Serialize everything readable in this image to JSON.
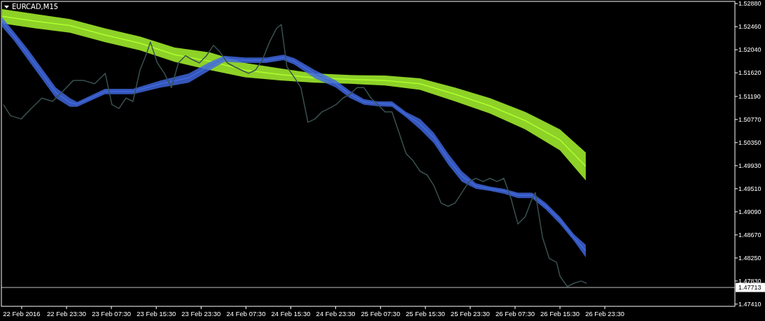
{
  "chart_data": {
    "type": "line",
    "title": "EURCAD,M15",
    "xlim": [
      "2016-02-22T11:53",
      "2016-02-27T22:42"
    ],
    "ylim": [
      1.4737,
      1.5292
    ],
    "xticks": [
      {
        "value": "2016-02-22T15:30",
        "label": "22 Feb 2016"
      },
      {
        "value": "2016-02-22T23:30",
        "label": "22 Feb 23:30"
      },
      {
        "value": "2016-02-23T07:30",
        "label": "23 Feb 07:30"
      },
      {
        "value": "2016-02-23T15:30",
        "label": "23 Feb 15:30"
      },
      {
        "value": "2016-02-23T23:30",
        "label": "23 Feb 23:30"
      },
      {
        "value": "2016-02-24T07:30",
        "label": "24 Feb 07:30"
      },
      {
        "value": "2016-02-24T15:30",
        "label": "24 Feb 15:30"
      },
      {
        "value": "2016-02-24T23:30",
        "label": "24 Feb 23:30"
      },
      {
        "value": "2016-02-25T07:30",
        "label": "25 Feb 07:30"
      },
      {
        "value": "2016-02-25T15:30",
        "label": "25 Feb 15:30"
      },
      {
        "value": "2016-02-25T23:30",
        "label": "25 Feb 23:30"
      },
      {
        "value": "2016-02-26T07:30",
        "label": "26 Feb 07:30"
      },
      {
        "value": "2016-02-26T15:30",
        "label": "26 Feb 15:30"
      },
      {
        "value": "2016-02-26T23:30",
        "label": "26 Feb 23:30"
      }
    ],
    "yticks": [
      {
        "value": 1.5288,
        "label": "1.52880"
      },
      {
        "value": 1.5246,
        "label": "1.52460"
      },
      {
        "value": 1.5204,
        "label": "1.52040"
      },
      {
        "value": 1.5162,
        "label": "1.51620"
      },
      {
        "value": 1.5119,
        "label": "1.51190"
      },
      {
        "value": 1.5077,
        "label": "1.50770"
      },
      {
        "value": 1.5035,
        "label": "1.50350"
      },
      {
        "value": 1.4993,
        "label": "1.49930"
      },
      {
        "value": 1.4951,
        "label": "1.49510"
      },
      {
        "value": 1.4909,
        "label": "1.49090"
      },
      {
        "value": 1.4867,
        "label": "1.48670"
      },
      {
        "value": 1.4825,
        "label": "1.48250"
      },
      {
        "value": 1.4783,
        "label": "1.47830"
      },
      {
        "value": 1.4741,
        "label": "1.47410"
      }
    ],
    "grid": false,
    "ref_lines": [
      {
        "axis": "y",
        "value": 1.47713,
        "label": "1.47713",
        "color": "#c0c0c0"
      }
    ],
    "series": [
      {
        "color": "#adff2f",
        "x": [
          "2016-02-22T12:00",
          "2016-02-22T17:54",
          "2016-02-23T00:06",
          "2016-02-23T06:21",
          "2016-02-23T12:36",
          "2016-02-23T18:48",
          "2016-02-24T01:06",
          "2016-02-24T07:18",
          "2016-02-24T13:33",
          "2016-02-24T19:48",
          "2016-02-25T02:03",
          "2016-02-25T08:18",
          "2016-02-25T14:33",
          "2016-02-25T20:48",
          "2016-02-26T03:00",
          "2016-02-26T09:18",
          "2016-02-26T15:30",
          "2016-02-26T20:06"
        ],
        "values": [
          1.5265,
          1.5256,
          1.5248,
          1.5231,
          1.5216,
          1.5195,
          1.5183,
          1.5167,
          1.5159,
          1.5153,
          1.515,
          1.5148,
          1.5142,
          1.5123,
          1.5102,
          1.5075,
          1.504,
          1.4992
        ],
        "upper": [
          1.5278,
          1.5269,
          1.526,
          1.5243,
          1.5228,
          1.5208,
          1.5199,
          1.518,
          1.517,
          1.5161,
          1.5158,
          1.5157,
          1.5152,
          1.5135,
          1.5116,
          1.5091,
          1.5059,
          1.5017
        ],
        "lower": [
          1.5252,
          1.5243,
          1.5235,
          1.5218,
          1.5203,
          1.5182,
          1.5167,
          1.5154,
          1.5148,
          1.5144,
          1.5142,
          1.5139,
          1.5131,
          1.511,
          1.5088,
          1.5059,
          1.5021,
          1.4966
        ]
      },
      {
        "color": "#4169e1",
        "x": [
          "2016-02-22T12:00",
          "2016-02-22T14:06",
          "2016-02-22T16:36",
          "2016-02-22T21:36",
          "2016-02-23T00:06",
          "2016-02-23T01:24",
          "2016-02-23T06:21",
          "2016-02-23T11:21",
          "2016-02-23T16:18",
          "2016-02-23T21:18",
          "2016-02-24T01:06",
          "2016-02-24T03:36",
          "2016-02-24T07:18",
          "2016-02-24T11:06",
          "2016-02-24T14:12",
          "2016-02-24T16:06",
          "2016-02-24T19:48",
          "2016-02-24T23:33",
          "2016-02-25T02:03",
          "2016-02-25T04:33",
          "2016-02-25T07:03",
          "2016-02-25T09:33",
          "2016-02-25T12:03",
          "2016-02-25T14:33",
          "2016-02-25T17:00",
          "2016-02-25T19:33",
          "2016-02-25T22:00",
          "2016-02-26T00:30",
          "2016-02-26T03:00",
          "2016-02-26T05:30",
          "2016-02-26T08:00",
          "2016-02-26T10:30",
          "2016-02-26T13:00",
          "2016-02-26T15:30",
          "2016-02-26T18:00",
          "2016-02-26T20:06"
        ],
        "values": [
          1.5255,
          1.5229,
          1.5196,
          1.5126,
          1.5108,
          1.5105,
          1.5128,
          1.5128,
          1.5142,
          1.5153,
          1.5175,
          1.5188,
          1.5185,
          1.5185,
          1.519,
          1.5183,
          1.516,
          1.5142,
          1.5123,
          1.5109,
          1.5106,
          1.5105,
          1.5086,
          1.5069,
          1.5044,
          1.5005,
          1.4974,
          1.4956,
          1.4951,
          1.4947,
          1.4939,
          1.4939,
          1.4919,
          1.4894,
          1.4862,
          1.4838
        ],
        "upper": [
          1.5263,
          1.5237,
          1.5205,
          1.5135,
          1.5116,
          1.5109,
          1.5133,
          1.5133,
          1.5148,
          1.5161,
          1.5182,
          1.5193,
          1.519,
          1.519,
          1.5195,
          1.5189,
          1.5167,
          1.5148,
          1.5129,
          1.5114,
          1.511,
          1.511,
          1.5091,
          1.5078,
          1.5053,
          1.5015,
          1.4983,
          1.4961,
          1.4955,
          1.4951,
          1.4944,
          1.4944,
          1.4925,
          1.49,
          1.4868,
          1.4849
        ],
        "lower": [
          1.5246,
          1.5221,
          1.5186,
          1.5116,
          1.51,
          1.51,
          1.5123,
          1.5123,
          1.5135,
          1.5144,
          1.5167,
          1.5182,
          1.518,
          1.518,
          1.5185,
          1.5177,
          1.5152,
          1.5135,
          1.5116,
          1.5104,
          1.5101,
          1.51,
          1.5081,
          1.5059,
          1.5034,
          1.4995,
          1.4964,
          1.4951,
          1.4947,
          1.4942,
          1.4934,
          1.4934,
          1.4913,
          1.4887,
          1.4856,
          1.4826
        ]
      },
      {
        "color": "#3a5050",
        "x": [
          "2016-02-22T12:15",
          "2016-02-22T13:30",
          "2016-02-22T15:24",
          "2016-02-22T17:12",
          "2016-02-22T19:06",
          "2016-02-22T21:00",
          "2016-02-22T22:54",
          "2016-02-23T00:42",
          "2016-02-23T02:36",
          "2016-02-23T04:30",
          "2016-02-23T06:24",
          "2016-02-23T07:36",
          "2016-02-23T08:51",
          "2016-02-23T10:06",
          "2016-02-23T11:21",
          "2016-02-23T12:36",
          "2016-02-23T13:51",
          "2016-02-23T14:27",
          "2016-02-23T15:42",
          "2016-02-23T16:57",
          "2016-02-23T18:12",
          "2016-02-23T19:27",
          "2016-02-23T20:42",
          "2016-02-23T21:57",
          "2016-02-23T23:12",
          "2016-02-24T00:27",
          "2016-02-24T01:42",
          "2016-02-24T02:57",
          "2016-02-24T04:12",
          "2016-02-24T05:27",
          "2016-02-24T06:42",
          "2016-02-24T07:57",
          "2016-02-24T09:12",
          "2016-02-24T10:27",
          "2016-02-24T11:42",
          "2016-02-24T12:57",
          "2016-02-24T13:48",
          "2016-02-24T14:48",
          "2016-02-24T16:06",
          "2016-02-24T17:18",
          "2016-02-24T18:33",
          "2016-02-24T19:48",
          "2016-02-24T21:03",
          "2016-02-24T22:18",
          "2016-02-24T23:33",
          "2016-02-25T00:48",
          "2016-02-25T02:03",
          "2016-02-25T03:18",
          "2016-02-25T04:33",
          "2016-02-25T05:48",
          "2016-02-25T07:03",
          "2016-02-25T08:18",
          "2016-02-25T09:33",
          "2016-02-25T10:48",
          "2016-02-25T12:03",
          "2016-02-25T13:18",
          "2016-02-25T14:33",
          "2016-02-25T15:48",
          "2016-02-25T17:00",
          "2016-02-25T18:18",
          "2016-02-25T19:33",
          "2016-02-25T20:48",
          "2016-02-25T22:00",
          "2016-02-25T23:18",
          "2016-02-26T00:30",
          "2016-02-26T01:48",
          "2016-02-26T03:00",
          "2016-02-26T04:18",
          "2016-02-26T05:30",
          "2016-02-26T06:48",
          "2016-02-26T08:00",
          "2016-02-26T09:18",
          "2016-02-26T10:30",
          "2016-02-26T11:06",
          "2016-02-26T12:24",
          "2016-02-26T13:36",
          "2016-02-26T14:54",
          "2016-02-26T15:30",
          "2016-02-26T16:48",
          "2016-02-26T18:00",
          "2016-02-26T19:15",
          "2016-02-26T20:15"
        ],
        "values": [
          1.5104,
          1.5084,
          1.5078,
          1.5097,
          1.5116,
          1.511,
          1.5129,
          1.5148,
          1.5148,
          1.5142,
          1.5161,
          1.5104,
          1.5097,
          1.5116,
          1.511,
          1.5167,
          1.5199,
          1.5218,
          1.518,
          1.5161,
          1.5135,
          1.518,
          1.5193,
          1.5186,
          1.518,
          1.5193,
          1.5212,
          1.5199,
          1.518,
          1.5173,
          1.5167,
          1.5161,
          1.5167,
          1.5186,
          1.5218,
          1.5243,
          1.525,
          1.5173,
          1.5154,
          1.5135,
          1.5072,
          1.5078,
          1.5091,
          1.5097,
          1.5104,
          1.5116,
          1.5123,
          1.5135,
          1.5135,
          1.5116,
          1.5104,
          1.5091,
          1.5091,
          1.5053,
          1.5015,
          1.5002,
          1.4983,
          1.4976,
          1.4957,
          1.4925,
          1.4919,
          1.4925,
          1.4944,
          1.4964,
          1.497,
          1.4964,
          1.497,
          1.4964,
          1.497,
          1.4932,
          1.4887,
          1.49,
          1.4932,
          1.4944,
          1.4862,
          1.4824,
          1.4817,
          1.4792,
          1.4773,
          1.4779,
          1.4783,
          1.4779
        ]
      }
    ]
  }
}
